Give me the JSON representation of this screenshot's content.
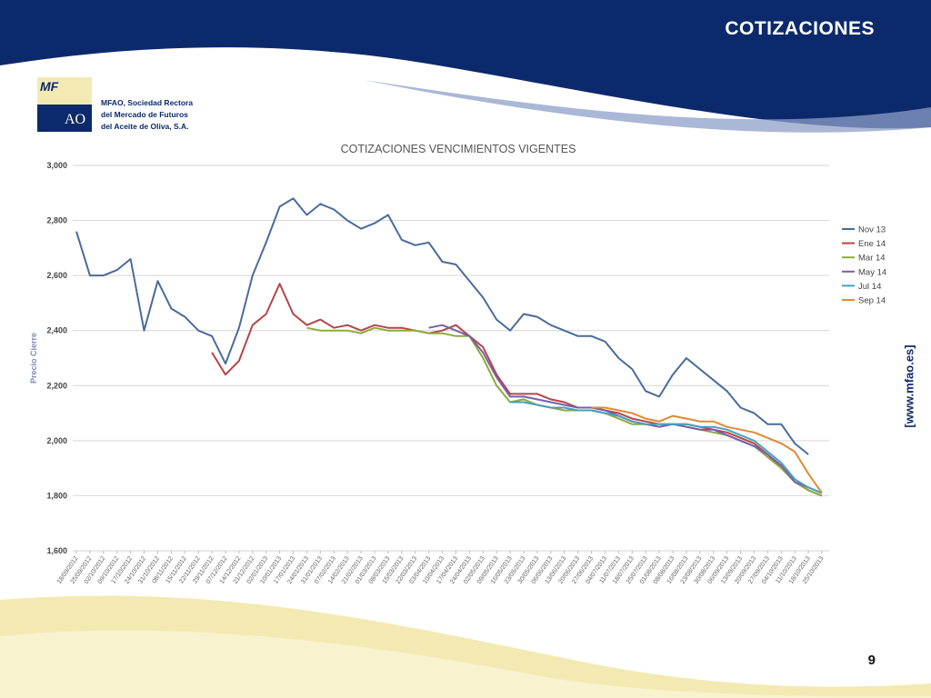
{
  "slide": {
    "title": "COTIZACIONES",
    "page_number": "9",
    "website": "[www.mfao.es]"
  },
  "logo": {
    "mark_top": "MF",
    "mark_bottom": "AO",
    "line1": "MFAO, Sociedad Rectora",
    "line2": "del Mercado de Futuros",
    "line3": "del Aceite de Oliva, S.A."
  },
  "colors": {
    "navy": "#0c2a6b",
    "cream": "#f3eab3",
    "Nov 13": "#4a6b9c",
    "Ene 14": "#b5454a",
    "Mar 14": "#8cab3e",
    "May 14": "#7b5ea7",
    "Jul 14": "#45a1c0",
    "Sep 14": "#e08a34"
  },
  "chart_data": {
    "type": "line",
    "title": "COTIZACIONES VENCIMIENTOS VIGENTES",
    "ylabel": "Precio Cierre",
    "xlabel": "",
    "ylim": [
      1600,
      3000
    ],
    "yticks": [
      "3,000",
      "2,800",
      "2,600",
      "2,400",
      "2,200",
      "2,000",
      "1,800",
      "1,600"
    ],
    "grid": true,
    "legend_position": "right",
    "x": [
      "18/09/2012",
      "25/09/2012",
      "02/10/2012",
      "09/10/2012",
      "17/10/2012",
      "24/10/2012",
      "31/10/2012",
      "08/11/2012",
      "15/11/2012",
      "22/11/2012",
      "29/11/2012",
      "07/12/2012",
      "14/12/2012",
      "21/12/2012",
      "02/01/2013",
      "10/01/2013",
      "17/01/2013",
      "24/01/2013",
      "31/01/2013",
      "07/02/2013",
      "14/02/2013",
      "21/02/2013",
      "01/03/2013",
      "08/03/2013",
      "15/03/2013",
      "22/03/2013",
      "03/04/2013",
      "10/04/2013",
      "17/04/2013",
      "24/04/2013",
      "02/05/2013",
      "09/05/2013",
      "16/05/2013",
      "23/05/2013",
      "30/05/2013",
      "06/06/2013",
      "13/06/2013",
      "20/06/2013",
      "27/06/2013",
      "04/07/2013",
      "11/07/2013",
      "18/07/2013",
      "25/07/2013",
      "01/08/2013",
      "08/08/2013",
      "16/08/2013",
      "23/08/2013",
      "30/08/2013",
      "06/09/2013",
      "13/09/2013",
      "20/09/2013",
      "27/09/2013",
      "04/10/2013",
      "11/10/2013",
      "18/10/2013",
      "25/10/2013"
    ],
    "series": [
      {
        "name": "Nov 13",
        "values": [
          2760,
          2600,
          2600,
          2620,
          2660,
          2400,
          2580,
          2480,
          2450,
          2400,
          2380,
          2280,
          2410,
          2600,
          2720,
          2850,
          2880,
          2820,
          2860,
          2840,
          2800,
          2770,
          2790,
          2820,
          2730,
          2710,
          2720,
          2650,
          2640,
          2580,
          2520,
          2440,
          2400,
          2460,
          2450,
          2420,
          2400,
          2380,
          2380,
          2360,
          2300,
          2260,
          2180,
          2160,
          2240,
          2300,
          2260,
          2220,
          2180,
          2120,
          2100,
          2060,
          2060,
          1990,
          1950,
          null
        ]
      },
      {
        "name": "Ene 14",
        "values": [
          null,
          null,
          null,
          null,
          null,
          null,
          null,
          null,
          null,
          null,
          2320,
          2240,
          2290,
          2420,
          2460,
          2570,
          2460,
          2420,
          2440,
          2410,
          2420,
          2400,
          2420,
          2410,
          2410,
          2400,
          2390,
          2400,
          2420,
          2380,
          2340,
          2240,
          2170,
          2170,
          2170,
          2150,
          2140,
          2120,
          2120,
          2110,
          2100,
          2080,
          2070,
          2060,
          2060,
          2060,
          2050,
          2040,
          2030,
          2010,
          1990,
          1950,
          1900,
          1850,
          1820,
          1800
        ]
      },
      {
        "name": "Mar 14",
        "values": [
          null,
          null,
          null,
          null,
          null,
          null,
          null,
          null,
          null,
          null,
          null,
          null,
          null,
          null,
          null,
          null,
          null,
          2410,
          2400,
          2400,
          2400,
          2390,
          2410,
          2400,
          2400,
          2400,
          2390,
          2390,
          2380,
          2380,
          2300,
          2200,
          2140,
          2150,
          2130,
          2120,
          2110,
          2110,
          2110,
          2100,
          2080,
          2060,
          2060,
          2050,
          2060,
          2050,
          2040,
          2030,
          2020,
          2000,
          1980,
          1940,
          1900,
          1850,
          1820,
          1800
        ]
      },
      {
        "name": "May 14",
        "values": [
          null,
          null,
          null,
          null,
          null,
          null,
          null,
          null,
          null,
          null,
          null,
          null,
          null,
          null,
          null,
          null,
          null,
          null,
          null,
          null,
          null,
          null,
          null,
          null,
          null,
          null,
          2410,
          2420,
          2400,
          2380,
          2320,
          2230,
          2160,
          2160,
          2150,
          2140,
          2130,
          2120,
          2120,
          2110,
          2090,
          2070,
          2060,
          2050,
          2060,
          2050,
          2040,
          2040,
          2020,
          2000,
          1980,
          1950,
          1910,
          1850,
          1830,
          1810
        ]
      },
      {
        "name": "Jul 14",
        "values": [
          null,
          null,
          null,
          null,
          null,
          null,
          null,
          null,
          null,
          null,
          null,
          null,
          null,
          null,
          null,
          null,
          null,
          null,
          null,
          null,
          null,
          null,
          null,
          null,
          null,
          null,
          null,
          null,
          null,
          null,
          null,
          null,
          2140,
          2140,
          2130,
          2120,
          2120,
          2110,
          2110,
          2100,
          2090,
          2070,
          2060,
          2060,
          2060,
          2060,
          2050,
          2050,
          2040,
          2020,
          2000,
          1960,
          1920,
          1860,
          1830,
          1810
        ]
      },
      {
        "name": "Sep 14",
        "values": [
          null,
          null,
          null,
          null,
          null,
          null,
          null,
          null,
          null,
          null,
          null,
          null,
          null,
          null,
          null,
          null,
          null,
          null,
          null,
          null,
          null,
          null,
          null,
          null,
          null,
          null,
          null,
          null,
          null,
          null,
          null,
          null,
          null,
          null,
          null,
          null,
          null,
          null,
          2120,
          2120,
          2110,
          2100,
          2080,
          2070,
          2090,
          2080,
          2070,
          2070,
          2050,
          2040,
          2030,
          2010,
          1990,
          1960,
          1880,
          1810
        ]
      }
    ]
  }
}
